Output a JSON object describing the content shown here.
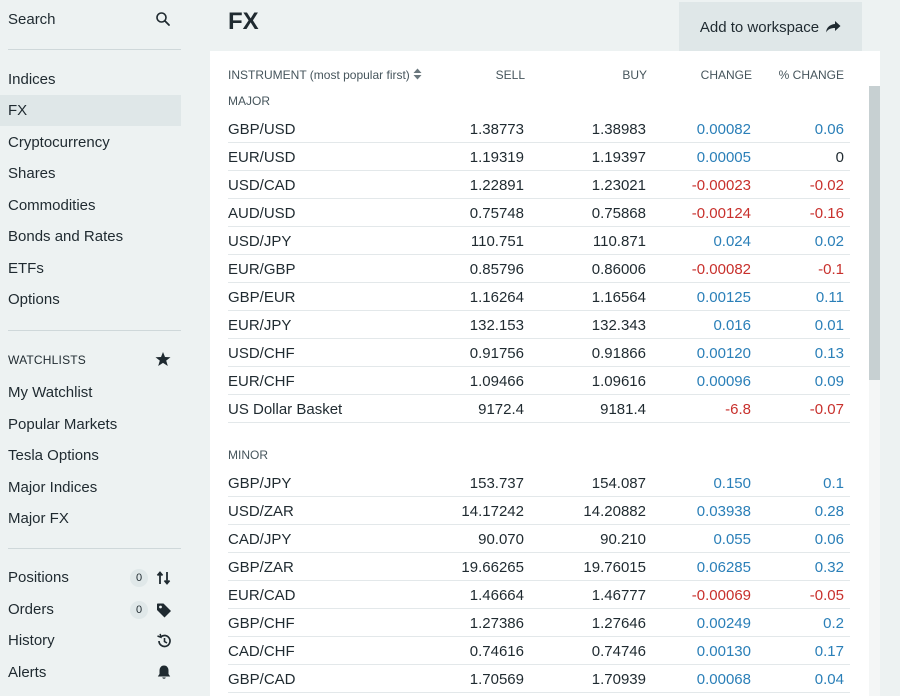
{
  "sidebar": {
    "search_label": "Search",
    "nav": [
      "Indices",
      "FX",
      "Cryptocurrency",
      "Shares",
      "Commodities",
      "Bonds and Rates",
      "ETFs",
      "Options"
    ],
    "watchlists_label": "WATCHLISTS",
    "watchlists": [
      "My Watchlist",
      "Popular Markets",
      "Tesla Options",
      "Major Indices",
      "Major FX"
    ],
    "account": [
      {
        "label": "Positions",
        "count": "0",
        "icon": "sort-arrows-icon"
      },
      {
        "label": "Orders",
        "count": "0",
        "icon": "tag-icon"
      },
      {
        "label": "History",
        "icon": "history-icon"
      },
      {
        "label": "Alerts",
        "icon": "bell-icon"
      }
    ]
  },
  "header": {
    "title": "FX",
    "workspace_button": "Add to workspace"
  },
  "table": {
    "columns": {
      "instrument": "INSTRUMENT (most popular first)",
      "sell": "SELL",
      "buy": "BUY",
      "change": "CHANGE",
      "pct_change": "% CHANGE"
    },
    "groups": [
      {
        "label": "MAJOR",
        "rows": [
          {
            "instrument": "GBP/USD",
            "sell": "1.38773",
            "buy": "1.38983",
            "change": "0.00082",
            "pct": "0.06"
          },
          {
            "instrument": "EUR/USD",
            "sell": "1.19319",
            "buy": "1.19397",
            "change": "0.00005",
            "pct": "0"
          },
          {
            "instrument": "USD/CAD",
            "sell": "1.22891",
            "buy": "1.23021",
            "change": "-0.00023",
            "pct": "-0.02"
          },
          {
            "instrument": "AUD/USD",
            "sell": "0.75748",
            "buy": "0.75868",
            "change": "-0.00124",
            "pct": "-0.16"
          },
          {
            "instrument": "USD/JPY",
            "sell": "110.751",
            "buy": "110.871",
            "change": "0.024",
            "pct": "0.02"
          },
          {
            "instrument": "EUR/GBP",
            "sell": "0.85796",
            "buy": "0.86006",
            "change": "-0.00082",
            "pct": "-0.1"
          },
          {
            "instrument": "GBP/EUR",
            "sell": "1.16264",
            "buy": "1.16564",
            "change": "0.00125",
            "pct": "0.11"
          },
          {
            "instrument": "EUR/JPY",
            "sell": "132.153",
            "buy": "132.343",
            "change": "0.016",
            "pct": "0.01"
          },
          {
            "instrument": "USD/CHF",
            "sell": "0.91756",
            "buy": "0.91866",
            "change": "0.00120",
            "pct": "0.13"
          },
          {
            "instrument": "EUR/CHF",
            "sell": "1.09466",
            "buy": "1.09616",
            "change": "0.00096",
            "pct": "0.09"
          },
          {
            "instrument": "US Dollar Basket",
            "sell": "9172.4",
            "buy": "9181.4",
            "change": "-6.8",
            "pct": "-0.07"
          }
        ]
      },
      {
        "label": "MINOR",
        "rows": [
          {
            "instrument": "GBP/JPY",
            "sell": "153.737",
            "buy": "154.087",
            "change": "0.150",
            "pct": "0.1"
          },
          {
            "instrument": "USD/ZAR",
            "sell": "14.17242",
            "buy": "14.20882",
            "change": "0.03938",
            "pct": "0.28"
          },
          {
            "instrument": "CAD/JPY",
            "sell": "90.070",
            "buy": "90.210",
            "change": "0.055",
            "pct": "0.06"
          },
          {
            "instrument": "GBP/ZAR",
            "sell": "19.66265",
            "buy": "19.76015",
            "change": "0.06285",
            "pct": "0.32"
          },
          {
            "instrument": "EUR/CAD",
            "sell": "1.46664",
            "buy": "1.46777",
            "change": "-0.00069",
            "pct": "-0.05"
          },
          {
            "instrument": "GBP/CHF",
            "sell": "1.27386",
            "buy": "1.27646",
            "change": "0.00249",
            "pct": "0.2"
          },
          {
            "instrument": "CAD/CHF",
            "sell": "0.74616",
            "buy": "0.74746",
            "change": "0.00130",
            "pct": "0.17"
          },
          {
            "instrument": "GBP/CAD",
            "sell": "1.70569",
            "buy": "1.70939",
            "change": "0.00068",
            "pct": "0.04"
          }
        ]
      }
    ]
  },
  "colors": {
    "positive": "#2a7fb8",
    "negative": "#c8302c",
    "active_nav": "#dfe7e8"
  }
}
